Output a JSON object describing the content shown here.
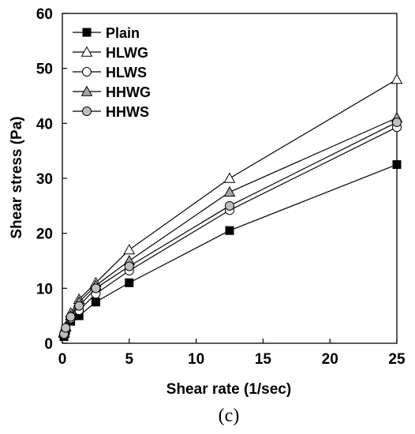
{
  "chart_data": {
    "type": "line",
    "xlabel": "Shear rate (1/sec)",
    "ylabel": "Shear stress (Pa)",
    "xlim": [
      0,
      25
    ],
    "ylim": [
      0,
      60
    ],
    "xticks": [
      0,
      5,
      10,
      15,
      20,
      25
    ],
    "yticks": [
      0,
      10,
      20,
      30,
      40,
      50,
      60
    ],
    "grid": false,
    "legend_position": "top-left",
    "x": [
      0.125,
      0.25,
      0.625,
      1.25,
      2.5,
      5,
      12.5,
      25
    ],
    "series": [
      {
        "name": "Plain",
        "marker": "square-filled",
        "values": [
          1.2,
          2.3,
          4.0,
          5.0,
          7.5,
          11.0,
          20.5,
          32.5
        ]
      },
      {
        "name": "HLWG",
        "marker": "triangle-open",
        "values": [
          2.0,
          3.0,
          5.5,
          8.0,
          11.0,
          17.0,
          30.0,
          48.0
        ]
      },
      {
        "name": "HLWS",
        "marker": "circle-open",
        "values": [
          1.5,
          2.5,
          4.5,
          6.0,
          9.0,
          13.2,
          24.2,
          39.3
        ]
      },
      {
        "name": "HHWG",
        "marker": "triangle-gray",
        "values": [
          1.8,
          3.0,
          5.0,
          7.5,
          10.5,
          15.0,
          27.5,
          41.0
        ]
      },
      {
        "name": "HHWS",
        "marker": "circle-gray",
        "values": [
          1.7,
          2.8,
          4.8,
          6.8,
          10.0,
          14.0,
          25.0,
          40.2
        ]
      }
    ]
  },
  "caption": "(c)"
}
